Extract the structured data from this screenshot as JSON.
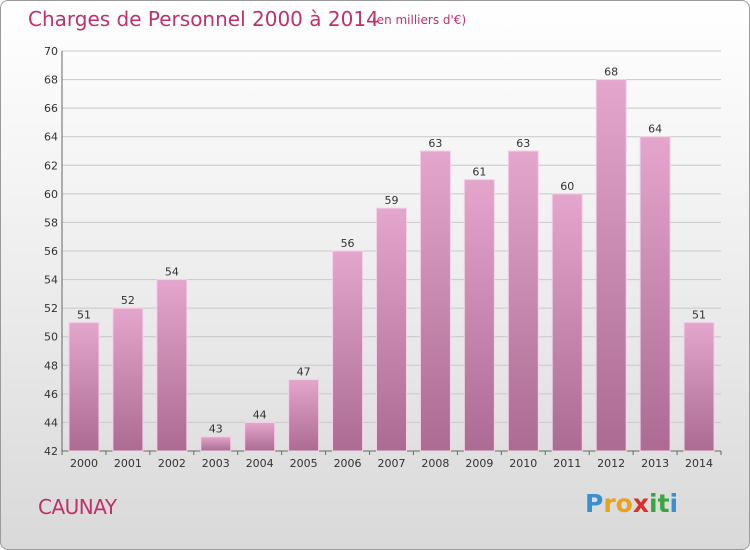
{
  "title": "Charges de Personnel 2000 à 2014",
  "subtitle": "(en milliers d'€)",
  "place": "CAUNAY",
  "logo": {
    "letters": [
      "P",
      "r",
      "o",
      "x",
      "i",
      "t",
      "i"
    ],
    "colors": [
      "#3a8fd0",
      "#e8a21b",
      "#e8a21b",
      "#d8312d",
      "#3aa640",
      "#3aa640",
      "#3a8fd0"
    ]
  },
  "colors": {
    "bar_top": "#e4a6cc",
    "bar_bottom": "#ab6b92",
    "bar_edge": "#f2d3e6",
    "accent": "#c0306a"
  },
  "chart_data": {
    "type": "bar",
    "categories": [
      "2000",
      "2001",
      "2002",
      "2003",
      "2004",
      "2005",
      "2006",
      "2007",
      "2008",
      "2009",
      "2010",
      "2011",
      "2012",
      "2013",
      "2014"
    ],
    "values": [
      51,
      52,
      54,
      43,
      44,
      47,
      56,
      59,
      63,
      61,
      63,
      60,
      68,
      64,
      51
    ],
    "ylim": [
      42,
      70
    ],
    "yticks": [
      42,
      44,
      46,
      48,
      50,
      52,
      54,
      56,
      58,
      60,
      62,
      64,
      66,
      68,
      70
    ],
    "grid": true,
    "data_labels": true
  }
}
